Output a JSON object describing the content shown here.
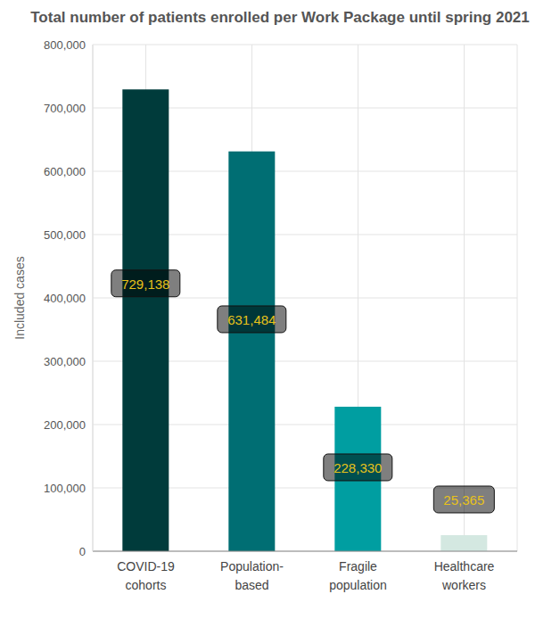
{
  "chart_data": {
    "type": "bar",
    "title": "Total number of patients enrolled per Work Package until spring 2021",
    "y_label": "Included cases",
    "categories": [
      "COVID-19 cohorts",
      "Population-based",
      "Fragile population",
      "Healthcare workers"
    ],
    "values": [
      729138,
      631484,
      228330,
      25365
    ],
    "value_labels": [
      "729,138",
      "631,484",
      "228,330",
      "25,365"
    ],
    "colors": [
      "#003b3b",
      "#006e73",
      "#009ea1",
      "#d4e8e1"
    ],
    "ylim": [
      0,
      800000
    ],
    "yticks": [
      0,
      {
        "value": 100000,
        "label": "100,000"
      },
      {
        "value": 200000,
        "label": "200,000"
      },
      {
        "value": 300000,
        "label": "300,000"
      },
      {
        "value": 400000,
        "label": "400,000"
      },
      {
        "value": 500000,
        "label": "500,000"
      },
      {
        "value": 600000,
        "label": "600,000"
      },
      {
        "value": 700000,
        "label": "700,000"
      },
      {
        "value": 800000,
        "label": "800,000"
      }
    ],
    "grid": true,
    "data_labels": true
  }
}
